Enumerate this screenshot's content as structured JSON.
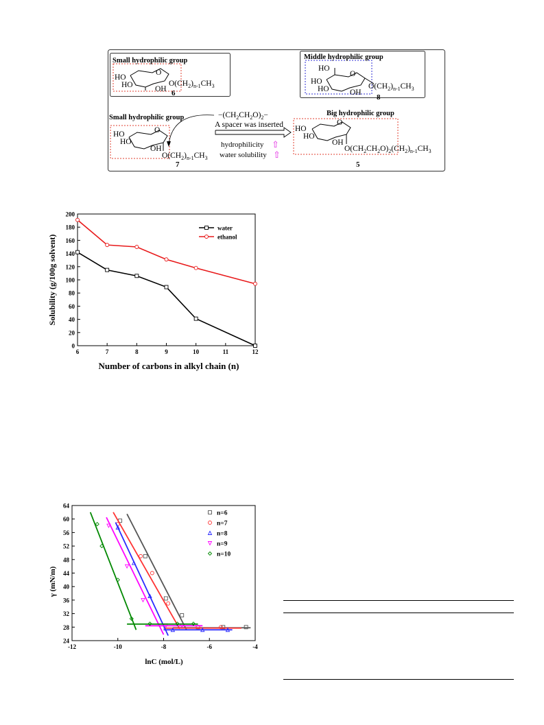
{
  "scheme": {
    "box6": {
      "label": "Small hydrophilic group",
      "ho1": "HO",
      "ho2": "HO",
      "o_ring": "O",
      "oh": "OH",
      "chain_o": "O(CH",
      "chain_sub1": "2",
      "chain_close": ")",
      "chain_sub2": "n-1",
      "chain_end": "CH",
      "chain_sub3": "3",
      "number": "6"
    },
    "box8": {
      "label": "Middle hydrophilic group",
      "ho1": "HO",
      "ho2": "HO",
      "ho3": "HO",
      "o_ring": "O",
      "oh": "OH",
      "chain_o": "O(CH",
      "chain_sub1": "2",
      "chain_close": ")",
      "chain_sub2": "n-1",
      "chain_end": "CH",
      "chain_sub3": "3",
      "number": "8"
    },
    "box7": {
      "label": "Small hydrophilic group",
      "ho1": "HO",
      "ho2": "HO",
      "o_ring": "O",
      "oh": "OH",
      "chain_o": "O(CH",
      "chain_sub1": "2",
      "chain_close": ")",
      "chain_sub2": "n-1",
      "chain_end": "CH",
      "chain_sub3": "3",
      "number": "7"
    },
    "spacer": {
      "formula_a": "−(CH",
      "formula_s1": "2",
      "formula_b": "CH",
      "formula_s2": "2",
      "formula_c": "O)",
      "formula_s3": "2",
      "formula_d": "−",
      "caption": "A spacer was inserted",
      "hydrophilicity": "hydrophilicity",
      "water_solubility": "water solubility",
      "arrow_glyph": "⇧"
    },
    "box5": {
      "label": "Big hydrophilic group",
      "ho1": "HO",
      "ho2": "HO",
      "o_ring": "O",
      "oh": "OH",
      "chain": "O(CH",
      "c_s1": "2",
      "c_b": "CH",
      "c_s2": "2",
      "c_c": "O)",
      "c_s3": "2",
      "c_d": "(CH",
      "c_s4": "2",
      "c_e": ")",
      "c_s5": "n-1",
      "c_f": "CH",
      "c_s6": "3",
      "number": "5"
    },
    "colors": {
      "red_box": "#e03c2c",
      "blue_box": "#2b2bd4",
      "magenta": "#e020e0"
    }
  },
  "chart_data": [
    {
      "type": "line",
      "x_label": "Number of carbons in alkyl chain (n)",
      "y_label": "Solubility (g/100g solvent)",
      "xlim": [
        6,
        12
      ],
      "ylim": [
        0,
        200
      ],
      "x_ticks": [
        "6",
        "7",
        "8",
        "9",
        "10",
        "11",
        "12"
      ],
      "y_ticks": [
        "0",
        "20",
        "40",
        "60",
        "80",
        "100",
        "120",
        "140",
        "160",
        "180",
        "200"
      ],
      "legend_position": "top-right",
      "series": [
        {
          "name": "water",
          "color": "#000000",
          "marker": "square",
          "x": [
            6,
            7,
            8,
            9,
            10,
            12
          ],
          "y": [
            142,
            115,
            106,
            89,
            41,
            0
          ]
        },
        {
          "name": "ethanol",
          "color": "#e8191a",
          "marker": "circle",
          "x": [
            6,
            7,
            8,
            9,
            10,
            12
          ],
          "y": [
            191,
            153,
            150,
            131,
            118,
            94
          ]
        }
      ]
    },
    {
      "type": "scatter",
      "x_label": "lnC (mol/L)",
      "y_label": "γ  (mN/m)",
      "xlim": [
        -12,
        -4
      ],
      "ylim": [
        24,
        64
      ],
      "x_ticks": [
        "-12",
        "-10",
        "-8",
        "-6",
        "-4"
      ],
      "y_ticks": [
        "24",
        "28",
        "32",
        "36",
        "40",
        "44",
        "48",
        "52",
        "56",
        "60",
        "64"
      ],
      "legend_position": "top-right",
      "series": [
        {
          "name": "n=6",
          "color": "#555555",
          "marker": "square",
          "x": [
            -9.9,
            -8.8,
            -7.9,
            -7.2,
            -6.5,
            -5.4,
            -4.4
          ],
          "y": [
            59.5,
            49,
            36.5,
            31.5,
            28,
            28,
            28
          ],
          "fit_lines": [
            {
              "x": [
                -9.6,
                -7.0
              ],
              "y": [
                61.5,
                27.2
              ]
            },
            {
              "x": [
                -7.6,
                -4.2
              ],
              "y": [
                27.8,
                27.8
              ]
            }
          ]
        },
        {
          "name": "n=7",
          "color": "#ff3333",
          "marker": "circle",
          "x": [
            -10,
            -9,
            -8.5,
            -7.8,
            -6.5,
            -5.5
          ],
          "y": [
            58.5,
            49,
            44,
            35,
            28,
            28
          ],
          "fit_lines": [
            {
              "x": [
                -10.2,
                -7.3
              ],
              "y": [
                62,
                27.5
              ]
            },
            {
              "x": [
                -8.0,
                -4.6
              ],
              "y": [
                27.7,
                27.7
              ]
            }
          ]
        },
        {
          "name": "n=8",
          "color": "#2a2aff",
          "marker": "triangle-up",
          "x": [
            -10.0,
            -9.3,
            -8.6,
            -7.6,
            -6.3,
            -5.2
          ],
          "y": [
            57.5,
            47,
            37.2,
            27.2,
            27.2,
            27.2
          ],
          "fit_lines": [
            {
              "x": [
                -10.1,
                -7.8
              ],
              "y": [
                59,
                25.5
              ]
            },
            {
              "x": [
                -8.0,
                -5.0
              ],
              "y": [
                27.2,
                27.2
              ]
            }
          ]
        },
        {
          "name": "n=9",
          "color": "#ff00ff",
          "marker": "triangle-down",
          "x": [
            -10.4,
            -9.6,
            -8.9,
            -7.9,
            -7.2
          ],
          "y": [
            58,
            46,
            36,
            28.5,
            28.5
          ],
          "fit_lines": [
            {
              "x": [
                -10.5,
                -8.0
              ],
              "y": [
                60.5,
                25.8
              ]
            },
            {
              "x": [
                -8.8,
                -6.3
              ],
              "y": [
                28.4,
                28.4
              ]
            }
          ]
        },
        {
          "name": "n=10",
          "color": "#008800",
          "marker": "diamond",
          "x": [
            -10.9,
            -10.7,
            -10.0,
            -9.4,
            -8.6,
            -7.4,
            -6.7
          ],
          "y": [
            58.5,
            52,
            42,
            30.5,
            29,
            29,
            29
          ],
          "fit_lines": [
            {
              "x": [
                -11.2,
                -9.2
              ],
              "y": [
                62,
                27.2
              ]
            },
            {
              "x": [
                -9.6,
                -6.5
              ],
              "y": [
                28.9,
                28.9
              ]
            }
          ]
        }
      ]
    }
  ]
}
